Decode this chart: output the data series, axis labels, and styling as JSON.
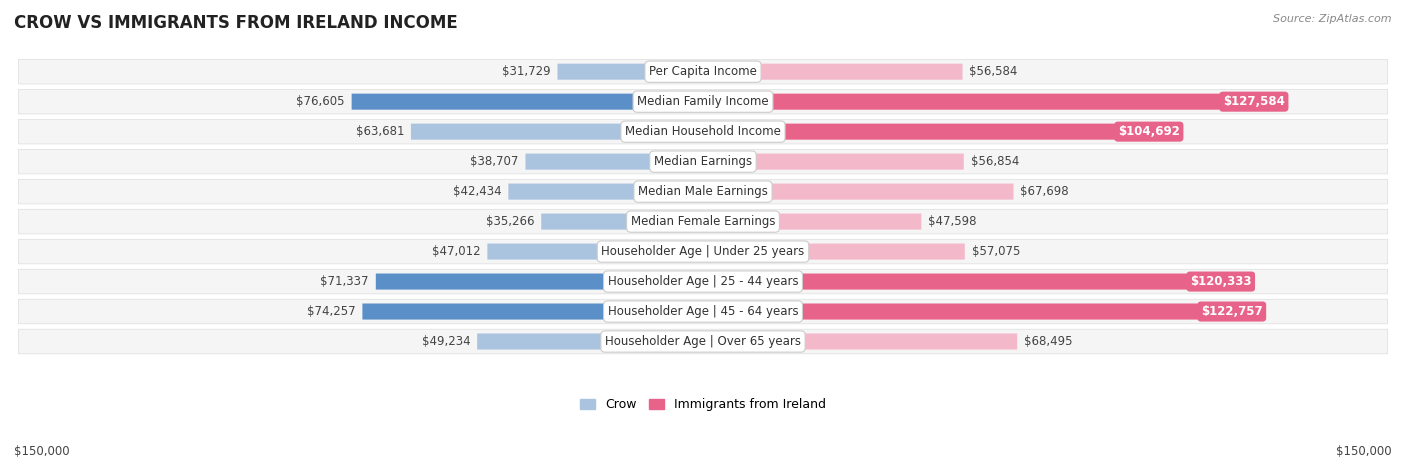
{
  "title": "CROW VS IMMIGRANTS FROM IRELAND INCOME",
  "source": "Source: ZipAtlas.com",
  "categories": [
    "Per Capita Income",
    "Median Family Income",
    "Median Household Income",
    "Median Earnings",
    "Median Male Earnings",
    "Median Female Earnings",
    "Householder Age | Under 25 years",
    "Householder Age | 25 - 44 years",
    "Householder Age | 45 - 64 years",
    "Householder Age | Over 65 years"
  ],
  "crow_values": [
    31729,
    76605,
    63681,
    38707,
    42434,
    35266,
    47012,
    71337,
    74257,
    49234
  ],
  "ireland_values": [
    56584,
    127584,
    104692,
    56854,
    67698,
    47598,
    57075,
    120333,
    122757,
    68495
  ],
  "crow_color_light": "#aac4e0",
  "crow_color_dark": "#5b8fc7",
  "ireland_color_light": "#f4b8cb",
  "ireland_color_dark": "#e8638a",
  "max_value": 150000,
  "bg_row_color": "#f0f0f0",
  "bg_row_alt": "#fafafa",
  "crow_label": "Crow",
  "ireland_label": "Immigrants from Ireland",
  "bottom_axis_label": "$150,000",
  "large_value_threshold_ireland": 100000,
  "large_value_threshold_crow": 65000,
  "value_label_fontsize": 8.5,
  "cat_label_fontsize": 8.5,
  "title_fontsize": 12
}
